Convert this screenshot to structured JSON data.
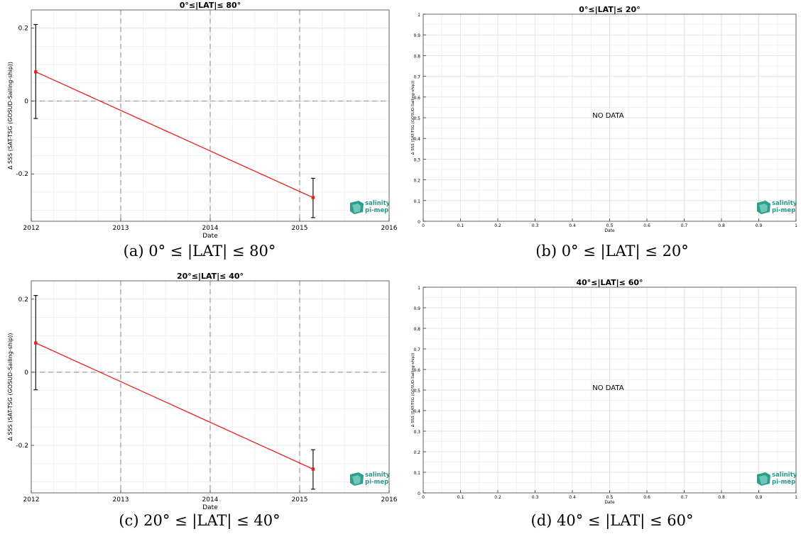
{
  "charts": [
    {
      "id": "a",
      "title": "0°≤|LAT|≤ 80°",
      "caption": "(a) 0° ≤ |LAT| ≤ 80°",
      "xlabel": "Date",
      "ylabel": "Δ SSS (SAT-TSG (GOSUD-Sailing-ship))",
      "logo": [
        "salinity",
        "pi-mep"
      ]
    },
    {
      "id": "b",
      "title": "0°≤|LAT|≤ 20°",
      "caption": "(b) 0° ≤ |LAT| ≤ 20°",
      "xlabel": "Date",
      "ylabel": "Δ SSS (SAT-TSG (GOSUD-Sailing-ship))",
      "no_data_text": "NO DATA",
      "logo": [
        "salinity",
        "pi-mep"
      ]
    },
    {
      "id": "c",
      "title": "20°≤|LAT|≤ 40°",
      "caption": "(c) 20° ≤ |LAT| ≤ 40°",
      "xlabel": "Date",
      "ylabel": "Δ SSS (SAT-TSG (GOSUD-Sailing-ship))",
      "logo": [
        "salinity",
        "pi-mep"
      ]
    },
    {
      "id": "d",
      "title": "40°≤|LAT|≤ 60°",
      "caption": "(d) 40° ≤ |LAT| ≤ 60°",
      "xlabel": "Date",
      "ylabel": "Δ SSS (SAT-TSG (GOSUD-Sailing-ship))",
      "no_data_text": "NO DATA",
      "logo": [
        "salinity",
        "pi-mep"
      ]
    }
  ],
  "chart_data": [
    {
      "type": "line",
      "panel": "a",
      "xlim": [
        2012,
        2016
      ],
      "ylim": [
        -0.33,
        0.25
      ],
      "xticks": [
        2012,
        2013,
        2014,
        2015,
        2016
      ],
      "yticks": [
        -0.2,
        0,
        0.2
      ],
      "ytick_labels": [
        "-0.2",
        "0",
        "0.2"
      ],
      "series": [
        {
          "color": "#e8211c",
          "x": [
            2012.05,
            2015.15
          ],
          "y": [
            0.08,
            -0.265
          ],
          "error_low": [
            -0.048,
            -0.32
          ],
          "error_high": [
            0.21,
            -0.212
          ]
        }
      ],
      "vlines": [
        2013,
        2014,
        2015
      ],
      "hlines": [
        0
      ],
      "grid": true
    },
    {
      "type": "line",
      "panel": "b",
      "xlim": [
        0,
        1
      ],
      "ylim": [
        0,
        1
      ],
      "xticks": [
        0,
        0.1,
        0.2,
        0.3,
        0.4,
        0.5,
        0.6,
        0.7,
        0.8,
        0.9,
        1
      ],
      "xtick_labels": [
        "0",
        "0.1",
        "0.2",
        "0.3",
        "0.4",
        "0.5",
        "0.6",
        "0.7",
        "0.8",
        "0.9",
        "1"
      ],
      "yticks": [
        0,
        0.1,
        0.2,
        0.3,
        0.4,
        0.5,
        0.6,
        0.7,
        0.8,
        0.9,
        1
      ],
      "ytick_labels": [
        "0",
        "0.1",
        "0.2",
        "0.3",
        "0.4",
        "0.5",
        "0.6",
        "0.7",
        "0.8",
        "0.9",
        "1"
      ],
      "series": [],
      "grid": true
    },
    {
      "type": "line",
      "panel": "c",
      "xlim": [
        2012,
        2016
      ],
      "ylim": [
        -0.33,
        0.25
      ],
      "xticks": [
        2012,
        2013,
        2014,
        2015,
        2016
      ],
      "yticks": [
        -0.2,
        0,
        0.2
      ],
      "ytick_labels": [
        "-0.2",
        "0",
        "0.2"
      ],
      "series": [
        {
          "color": "#e8211c",
          "x": [
            2012.05,
            2015.15
          ],
          "y": [
            0.08,
            -0.265
          ],
          "error_low": [
            -0.048,
            -0.32
          ],
          "error_high": [
            0.21,
            -0.212
          ]
        }
      ],
      "vlines": [
        2013,
        2014,
        2015
      ],
      "hlines": [
        0
      ],
      "grid": true
    },
    {
      "type": "line",
      "panel": "d",
      "xlim": [
        0,
        1
      ],
      "ylim": [
        0,
        1
      ],
      "xticks": [
        0,
        0.1,
        0.2,
        0.3,
        0.4,
        0.5,
        0.6,
        0.7,
        0.8,
        0.9,
        1
      ],
      "xtick_labels": [
        "0",
        "0.1",
        "0.2",
        "0.3",
        "0.4",
        "0.5",
        "0.6",
        "0.7",
        "0.8",
        "0.9",
        "1"
      ],
      "yticks": [
        0,
        0.1,
        0.2,
        0.3,
        0.4,
        0.5,
        0.6,
        0.7,
        0.8,
        0.9,
        1
      ],
      "ytick_labels": [
        "0",
        "0.1",
        "0.2",
        "0.3",
        "0.4",
        "0.5",
        "0.6",
        "0.7",
        "0.8",
        "0.9",
        "1"
      ],
      "series": [],
      "grid": true
    }
  ]
}
